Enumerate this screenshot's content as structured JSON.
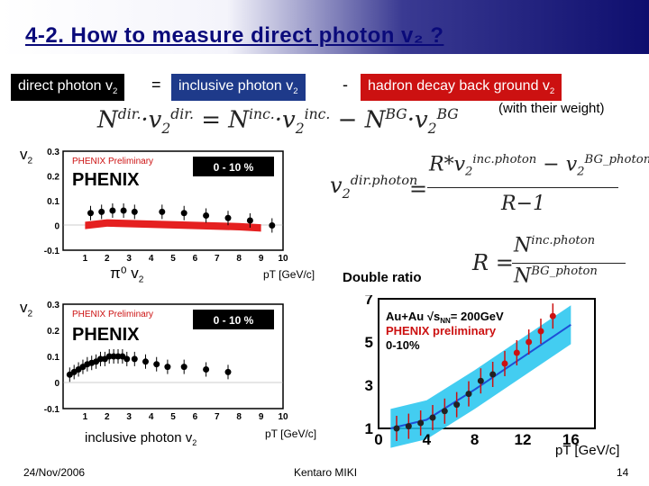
{
  "slide": {
    "title": "4-2. How to measure direct photon v₂ ?",
    "footer_date": "24/Nov/2006",
    "footer_author": "Kentaro MIKI",
    "page_number": "14"
  },
  "equation": {
    "term1": "direct photon v",
    "term1_sub": "2",
    "equals": "=",
    "term2": "inclusive photon v",
    "term2_sub": "2",
    "minus": "-",
    "term3": "hadron decay back ground v",
    "term3_sub": "2",
    "weight_note": "(with their weight)",
    "colors": {
      "term1_bg": "#000000",
      "term2_bg": "#1e3a8a",
      "term3_bg": "#cc1111"
    }
  },
  "formulas": {
    "main": "N^dir.·v₂^dir. = N^inc.·v₂^inc. − N^BG·v₂^BG",
    "v2_direct": "v₂^dir.photon = (R*v₂^inc.photon − v₂^BG_photon) / (R − 1)",
    "ratio_def": "R = N^inc.photon / N^BG_photon",
    "double_ratio_label": "Double ratio"
  },
  "plots": {
    "top": {
      "ylabel": "v",
      "ylabel_sub": "2",
      "xlabel": "pT [GeV/c]",
      "caption": "π⁰ v",
      "caption_sub": "2",
      "preliminary": "PHENIX Preliminary",
      "logo": "PHENIX",
      "centrality": "0 - 10 %",
      "yticks": [
        "0.3",
        "0.2",
        "0.1",
        "0",
        "-0.1"
      ],
      "xticks": [
        "1",
        "2",
        "3",
        "4",
        "5",
        "6",
        "7",
        "8",
        "9",
        "10"
      ]
    },
    "bottom": {
      "ylabel": "v",
      "ylabel_sub": "2",
      "xlabel": "pT [GeV/c]",
      "caption": "inclusive photon v",
      "caption_sub": "2",
      "preliminary": "PHENIX Preliminary",
      "logo": "PHENIX",
      "centrality": "0 - 10 %",
      "yticks": [
        "0.3",
        "0.2",
        "0.1",
        "0",
        "-0.1"
      ],
      "xticks": [
        "1",
        "2",
        "3",
        "4",
        "5",
        "6",
        "7",
        "8",
        "9",
        "10"
      ]
    },
    "ratio": {
      "system": "Au+Au √s",
      "system_sub": "NN",
      "energy": "= 200GeV",
      "preliminary": "PHENIX preliminary",
      "centrality": "0-10%",
      "xlabel": "pT [GeV/c]",
      "yticks": [
        "7",
        "5",
        "3",
        "1"
      ],
      "xticks": [
        "0",
        "4",
        "8",
        "12",
        "16"
      ]
    }
  },
  "chart_data": [
    {
      "type": "scatter",
      "title": "π0 v2",
      "xlabel": "pT [GeV/c]",
      "ylabel": "v2",
      "xlim": [
        0,
        10
      ],
      "ylim": [
        -0.1,
        0.3
      ],
      "series": [
        {
          "name": "π0 v2",
          "x": [
            1.25,
            1.75,
            2.25,
            2.75,
            3.25,
            4.5,
            5.5,
            6.5,
            7.5,
            8.5,
            9.5
          ],
          "y": [
            0.05,
            0.055,
            0.06,
            0.06,
            0.055,
            0.055,
            0.05,
            0.04,
            0.03,
            0.02,
            0.0
          ]
        }
      ],
      "band": {
        "x": [
          1,
          2,
          4,
          6,
          8,
          9
        ],
        "y": [
          0.0,
          0.01,
          0.005,
          0.0,
          -0.005,
          -0.01
        ]
      }
    },
    {
      "type": "scatter",
      "title": "inclusive photon v2",
      "xlabel": "pT [GeV/c]",
      "ylabel": "v2",
      "xlim": [
        0,
        10
      ],
      "ylim": [
        -0.1,
        0.3
      ],
      "series": [
        {
          "name": "inclusive photon v2",
          "x": [
            0.3,
            0.5,
            0.7,
            0.9,
            1.1,
            1.3,
            1.5,
            1.7,
            1.9,
            2.1,
            2.3,
            2.5,
            2.7,
            2.9,
            3.25,
            3.75,
            4.25,
            4.75,
            5.5,
            6.5,
            7.5
          ],
          "y": [
            0.03,
            0.04,
            0.05,
            0.06,
            0.07,
            0.075,
            0.08,
            0.09,
            0.09,
            0.1,
            0.1,
            0.1,
            0.1,
            0.09,
            0.09,
            0.08,
            0.07,
            0.06,
            0.06,
            0.05,
            0.04
          ]
        }
      ]
    },
    {
      "type": "scatter",
      "title": "Double ratio",
      "xlabel": "pT [GeV/c]",
      "xlim": [
        0,
        18
      ],
      "ylim": [
        1,
        7
      ],
      "series": [
        {
          "name": "data",
          "x": [
            1.5,
            2.5,
            3.5,
            4.5,
            5.5,
            6.5,
            7.5,
            8.5,
            9.5,
            10.5,
            11.5,
            12.5,
            13.5,
            14.5
          ],
          "y": [
            1.0,
            1.1,
            1.25,
            1.5,
            1.8,
            2.1,
            2.6,
            3.2,
            3.5,
            4.0,
            4.5,
            5.0,
            5.5,
            6.2
          ]
        },
        {
          "name": "curve",
          "x": [
            1,
            4,
            8,
            12,
            16
          ],
          "y": [
            1.0,
            1.4,
            2.8,
            4.3,
            5.8
          ]
        }
      ]
    }
  ]
}
